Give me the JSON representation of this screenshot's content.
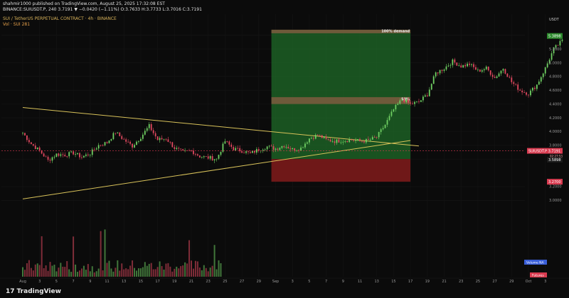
{
  "header": {
    "line1": "shahmir1000 published on TradingView.com, August 25, 2025 17:32:08 EST",
    "line2": "BINANCE:SUIUSDT.P, 240  3.7191 ▼ −0.0420 (−1.11%)  O:3.7633 H:3.7733 L:3.7016 C:3.7191",
    "line3": "SUI / TetherUS PERPETUAL CONTRACT · 4h · BINANCE",
    "line4": "Vol · SUI  281"
  },
  "brand": {
    "icon": "17",
    "label": "TradingView"
  },
  "axis_unit": "USDT",
  "colors": {
    "background": "#0b0b0b",
    "bull": "#6fcf62",
    "bear": "#e0485f",
    "trend": "#d8c25a",
    "demand_zone": "#1f6b28",
    "stop_zone": "#7a1a1a",
    "zone_line": "#6e5a3a",
    "price_tag": "#d93b50",
    "green_tag": "#2e8b2e",
    "volume_ma": "#3a5fd9"
  },
  "chart_data": {
    "type": "candlestick",
    "symbol": "SUIUSDT.P",
    "interval": "4h",
    "ylim": [
      2.9,
      5.5
    ],
    "y_ticks": [
      {
        "v": 5.4,
        "label": "5.4000"
      },
      {
        "v": 5.2,
        "label": "5.2000"
      },
      {
        "v": 5.0,
        "label": "5.0000"
      },
      {
        "v": 4.8,
        "label": "4.8000"
      },
      {
        "v": 4.6,
        "label": "4.6000"
      },
      {
        "v": 4.4,
        "label": "4.4000"
      },
      {
        "v": 4.2,
        "label": "4.2000"
      },
      {
        "v": 4.0,
        "label": "4.0000"
      },
      {
        "v": 3.8,
        "label": "3.8000"
      },
      {
        "v": 3.6,
        "label": "3.6000"
      },
      {
        "v": 3.2,
        "label": "3.2000"
      },
      {
        "v": 3.0,
        "label": "3.0000"
      }
    ],
    "x_ticks": [
      "Aug",
      "3",
      "5",
      "7",
      "9",
      "11",
      "13",
      "15",
      "17",
      "19",
      "21",
      "23",
      "25",
      "27",
      "29",
      "Sep",
      "3",
      "5",
      "7",
      "9",
      "11",
      "13",
      "15",
      "17",
      "19",
      "21",
      "23",
      "25",
      "27",
      "29",
      "Oct",
      "3"
    ],
    "price_markers": [
      {
        "v": 5.3898,
        "label": "5.3898",
        "kind": "green"
      },
      {
        "v": 3.7191,
        "label": "SUIUSDT.P  3.7191",
        "kind": "red"
      },
      {
        "v": 3.5898,
        "label": "3.5898",
        "kind": "dark"
      },
      {
        "v": 3.27,
        "label": "3.2700",
        "kind": "red"
      }
    ],
    "countdown": "02:27:53",
    "zones": [
      {
        "name": "100% demand",
        "x": [
          29.5,
          46.0
        ],
        "y": [
          3.6,
          5.46
        ],
        "kind": "target"
      },
      {
        "name": "50%",
        "x": [
          29.5,
          46.0
        ],
        "y": [
          4.4,
          4.5
        ],
        "kind": "mid"
      },
      {
        "name": "",
        "x": [
          29.5,
          46.0
        ],
        "y": [
          3.27,
          3.6
        ],
        "kind": "stop"
      }
    ],
    "trendlines": [
      {
        "from": [
          0,
          4.35
        ],
        "to": [
          47,
          3.79
        ]
      },
      {
        "from": [
          0,
          3.02
        ],
        "to": [
          46,
          3.87
        ]
      }
    ],
    "volume_label": "Volume  NA",
    "future_label": "Futures",
    "anchors": [
      {
        "x": 0,
        "y": 3.98
      },
      {
        "x": 1,
        "y": 3.82
      },
      {
        "x": 2,
        "y": 3.72
      },
      {
        "x": 3,
        "y": 3.58
      },
      {
        "x": 4,
        "y": 3.67
      },
      {
        "x": 5,
        "y": 3.66
      },
      {
        "x": 6,
        "y": 3.69
      },
      {
        "x": 7,
        "y": 3.63
      },
      {
        "x": 8,
        "y": 3.68
      },
      {
        "x": 9,
        "y": 3.8
      },
      {
        "x": 10,
        "y": 3.84
      },
      {
        "x": 11,
        "y": 3.99
      },
      {
        "x": 12,
        "y": 3.88
      },
      {
        "x": 13,
        "y": 3.79
      },
      {
        "x": 14,
        "y": 3.92
      },
      {
        "x": 15,
        "y": 4.08
      },
      {
        "x": 16,
        "y": 3.88
      },
      {
        "x": 17,
        "y": 3.9
      },
      {
        "x": 18,
        "y": 3.76
      },
      {
        "x": 19,
        "y": 3.7
      },
      {
        "x": 20,
        "y": 3.72
      },
      {
        "x": 21,
        "y": 3.64
      },
      {
        "x": 22,
        "y": 3.62
      },
      {
        "x": 23,
        "y": 3.6
      },
      {
        "x": 24,
        "y": 3.86
      },
      {
        "x": 25,
        "y": 3.75
      },
      {
        "x": 26,
        "y": 3.72
      },
      {
        "x": 27,
        "y": 3.68
      },
      {
        "x": 28,
        "y": 3.74
      },
      {
        "x": 29,
        "y": 3.78
      },
      {
        "x": 30,
        "y": 3.75
      },
      {
        "x": 31,
        "y": 3.8
      },
      {
        "x": 32,
        "y": 3.74
      },
      {
        "x": 33,
        "y": 3.76
      },
      {
        "x": 34,
        "y": 3.9
      },
      {
        "x": 35,
        "y": 3.95
      },
      {
        "x": 36,
        "y": 3.88
      },
      {
        "x": 37,
        "y": 3.86
      },
      {
        "x": 38,
        "y": 3.87
      },
      {
        "x": 39,
        "y": 3.88
      },
      {
        "x": 40,
        "y": 3.86
      },
      {
        "x": 41,
        "y": 3.87
      },
      {
        "x": 42,
        "y": 3.92
      },
      {
        "x": 43,
        "y": 4.1
      },
      {
        "x": 44,
        "y": 4.32
      },
      {
        "x": 45,
        "y": 4.47
      },
      {
        "x": 46,
        "y": 4.4
      },
      {
        "x": 47,
        "y": 4.43
      },
      {
        "x": 48,
        "y": 4.54
      },
      {
        "x": 49,
        "y": 4.85
      },
      {
        "x": 50,
        "y": 4.92
      },
      {
        "x": 51,
        "y": 5.02
      },
      {
        "x": 52,
        "y": 4.95
      },
      {
        "x": 53,
        "y": 4.98
      },
      {
        "x": 54,
        "y": 4.88
      },
      {
        "x": 55,
        "y": 4.92
      },
      {
        "x": 56,
        "y": 4.78
      },
      {
        "x": 57,
        "y": 4.92
      },
      {
        "x": 58,
        "y": 4.72
      },
      {
        "x": 59,
        "y": 4.6
      },
      {
        "x": 60,
        "y": 4.55
      },
      {
        "x": 61,
        "y": 4.68
      },
      {
        "x": 62,
        "y": 4.92
      },
      {
        "x": 63,
        "y": 5.2
      },
      {
        "x": 64,
        "y": 5.32
      }
    ]
  }
}
